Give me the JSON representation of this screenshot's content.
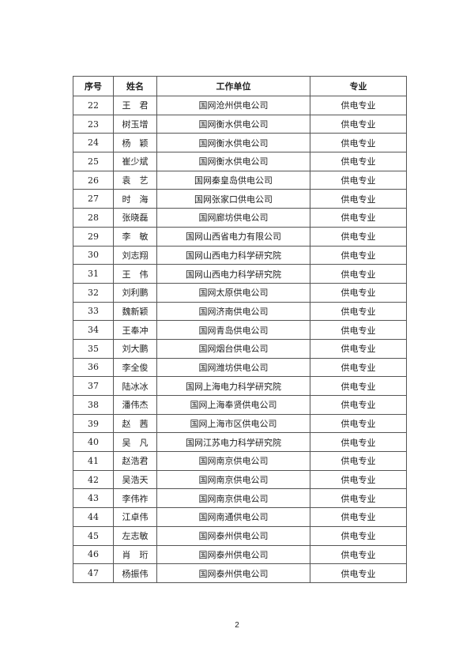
{
  "table": {
    "headers": [
      "序号",
      "姓名",
      "工作单位",
      "专业"
    ],
    "rows": [
      [
        "22",
        "王　君",
        "国网沧州供电公司",
        "供电专业"
      ],
      [
        "23",
        "树玉增",
        "国网衡水供电公司",
        "供电专业"
      ],
      [
        "24",
        "杨　颖",
        "国网衡水供电公司",
        "供电专业"
      ],
      [
        "25",
        "崔少斌",
        "国网衡水供电公司",
        "供电专业"
      ],
      [
        "26",
        "袁　艺",
        "国网秦皇岛供电公司",
        "供电专业"
      ],
      [
        "27",
        "时　海",
        "国网张家口供电公司",
        "供电专业"
      ],
      [
        "28",
        "张晓磊",
        "国网廊坊供电公司",
        "供电专业"
      ],
      [
        "29",
        "李　敏",
        "国网山西省电力有限公司",
        "供电专业"
      ],
      [
        "30",
        "刘志翔",
        "国网山西电力科学研究院",
        "供电专业"
      ],
      [
        "31",
        "王　伟",
        "国网山西电力科学研究院",
        "供电专业"
      ],
      [
        "32",
        "刘利鹏",
        "国网太原供电公司",
        "供电专业"
      ],
      [
        "33",
        "魏新颖",
        "国网济南供电公司",
        "供电专业"
      ],
      [
        "34",
        "王奉冲",
        "国网青岛供电公司",
        "供电专业"
      ],
      [
        "35",
        "刘大鹏",
        "国网烟台供电公司",
        "供电专业"
      ],
      [
        "36",
        "李全俊",
        "国网潍坊供电公司",
        "供电专业"
      ],
      [
        "37",
        "陆冰冰",
        "国网上海电力科学研究院",
        "供电专业"
      ],
      [
        "38",
        "潘伟杰",
        "国网上海奉贤供电公司",
        "供电专业"
      ],
      [
        "39",
        "赵　茜",
        "国网上海市区供电公司",
        "供电专业"
      ],
      [
        "40",
        "吴　凡",
        "国网江苏电力科学研究院",
        "供电专业"
      ],
      [
        "41",
        "赵浩君",
        "国网南京供电公司",
        "供电专业"
      ],
      [
        "42",
        "吴浩天",
        "国网南京供电公司",
        "供电专业"
      ],
      [
        "43",
        "李伟祚",
        "国网南京供电公司",
        "供电专业"
      ],
      [
        "44",
        "江卓伟",
        "国网南通供电公司",
        "供电专业"
      ],
      [
        "45",
        "左志敏",
        "国网泰州供电公司",
        "供电专业"
      ],
      [
        "46",
        "肖　珩",
        "国网泰州供电公司",
        "供电专业"
      ],
      [
        "47",
        "杨振伟",
        "国网泰州供电公司",
        "供电专业"
      ]
    ]
  },
  "page_number": "2"
}
